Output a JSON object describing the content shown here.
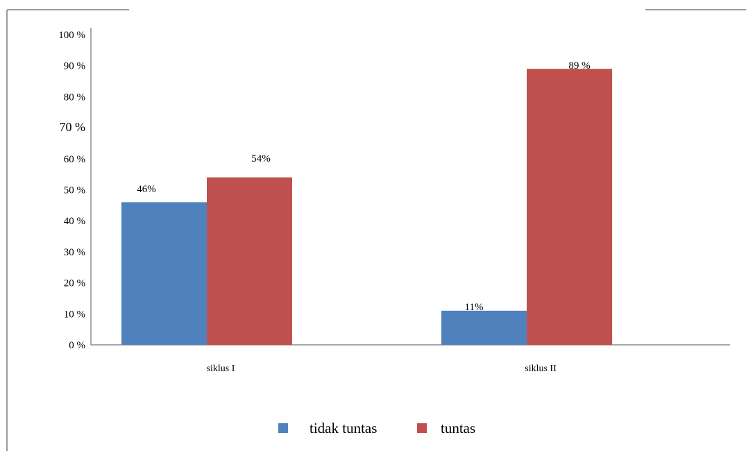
{
  "chart_data": {
    "type": "bar",
    "categories": [
      "siklus  I",
      "siklus II"
    ],
    "series": [
      {
        "name": "tidak tuntas",
        "values": [
          46,
          11
        ],
        "color": "#4f81bd"
      },
      {
        "name": "tuntas",
        "values": [
          54,
          89
        ],
        "color": "#c0504d"
      }
    ],
    "data_labels": [
      [
        "46%",
        "11%"
      ],
      [
        "54%",
        "89 %"
      ]
    ],
    "y_ticks": [
      0,
      10,
      20,
      30,
      40,
      50,
      60,
      70,
      80,
      90,
      100
    ],
    "y_tick_labels": [
      "0 %",
      "10 %",
      "20 %",
      "30 %",
      "40 %",
      "50 %",
      "60 %",
      "70 %",
      "80 %",
      "90 %",
      "100 %"
    ],
    "ylim": [
      0,
      100
    ],
    "grid": false,
    "legend_position": "bottom",
    "title": "",
    "xlabel": "",
    "ylabel": ""
  }
}
